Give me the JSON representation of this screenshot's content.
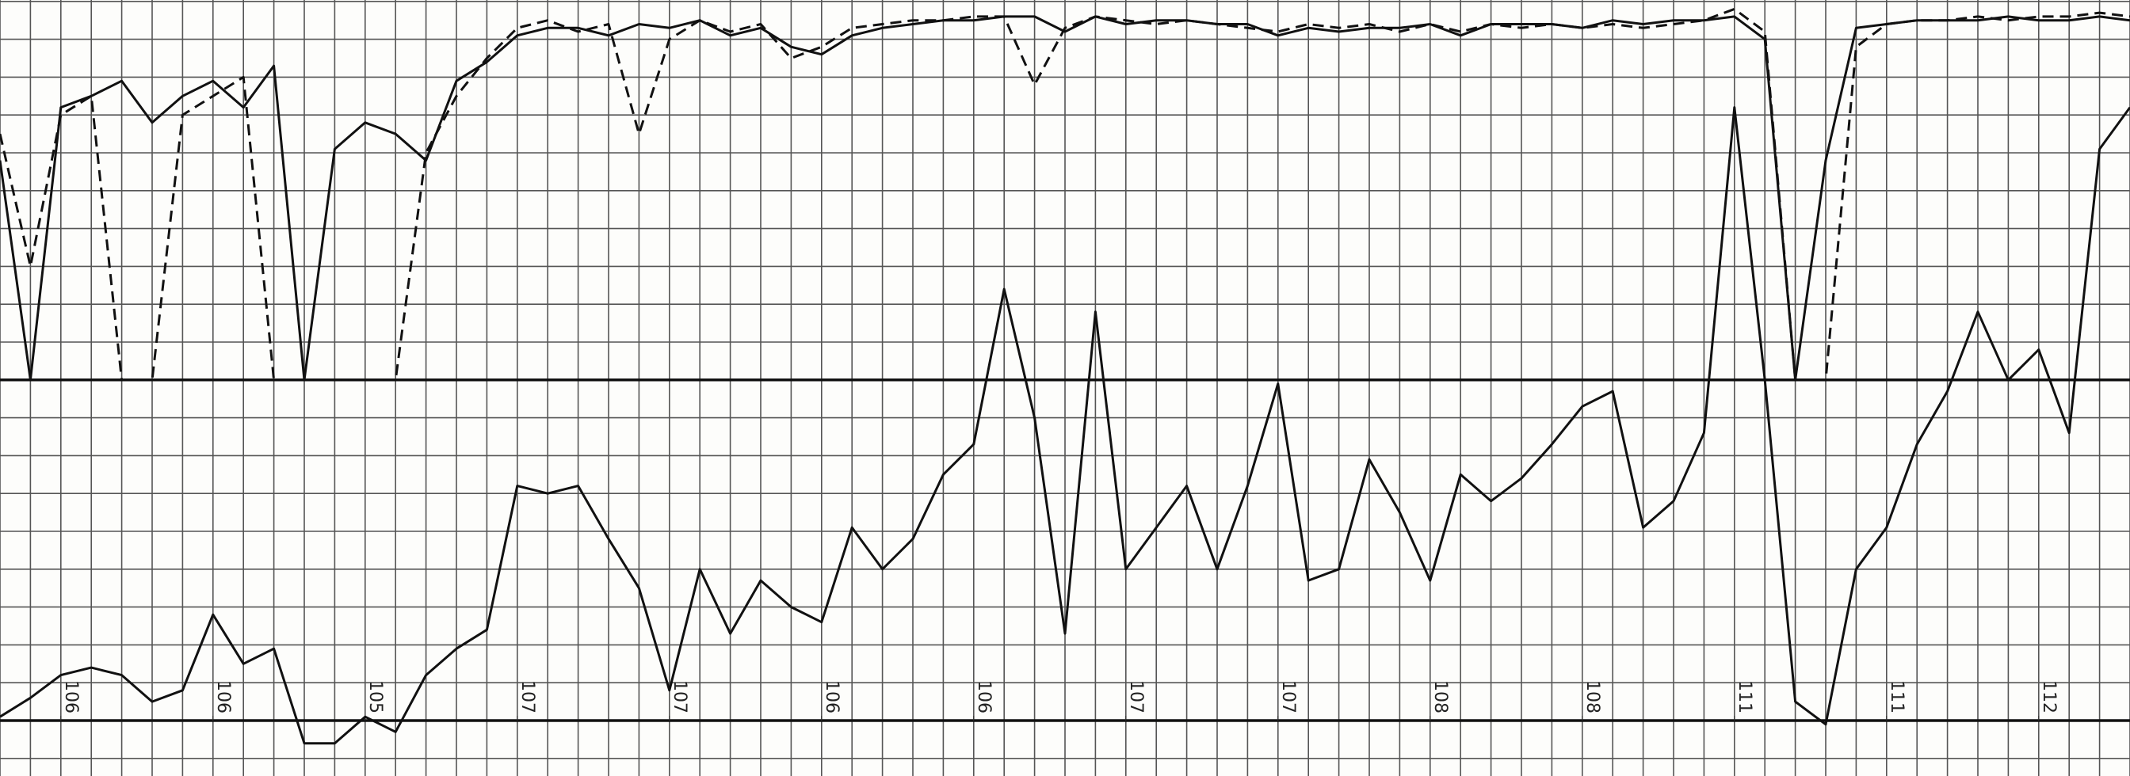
{
  "chart_data": {
    "type": "line",
    "x": [
      0,
      1,
      2,
      3,
      4,
      5,
      6,
      7,
      8,
      9,
      10,
      11,
      12,
      13,
      14,
      15,
      16,
      17,
      18,
      19,
      20,
      21,
      22,
      23,
      24,
      25,
      26,
      27,
      28,
      29,
      30,
      31,
      32,
      33,
      34,
      35,
      36,
      37,
      38,
      39,
      40,
      41,
      42,
      43,
      44,
      45,
      46,
      47,
      48,
      49,
      50,
      51,
      52,
      53,
      54,
      55,
      56,
      57,
      58,
      59,
      60,
      61,
      62,
      63,
      64,
      65,
      66,
      67,
      68,
      69,
      70
    ],
    "xlim": [
      0,
      70
    ],
    "ylim": [
      -1,
      19
    ],
    "xticks": [
      {
        "value": 2,
        "label": "106"
      },
      {
        "value": 7,
        "label": "106"
      },
      {
        "value": 12,
        "label": "105"
      },
      {
        "value": 17,
        "label": "107"
      },
      {
        "value": 22,
        "label": "107"
      },
      {
        "value": 27,
        "label": "106"
      },
      {
        "value": 32,
        "label": "106"
      },
      {
        "value": 37,
        "label": "107"
      },
      {
        "value": 42,
        "label": "107"
      },
      {
        "value": 47,
        "label": "108"
      },
      {
        "value": 52,
        "label": "108"
      },
      {
        "value": 57,
        "label": "111"
      },
      {
        "value": 62,
        "label": "111"
      },
      {
        "value": 67,
        "label": "112"
      }
    ],
    "grid": true,
    "reference_lines": [
      0,
      9
    ],
    "series": [
      {
        "color": "#111111",
        "dashed": false,
        "values": [
          14.8,
          9.0,
          16.2,
          16.5,
          16.9,
          15.8,
          16.5,
          16.9,
          16.2,
          17.3,
          9.0,
          15.1,
          15.8,
          15.5,
          14.8,
          16.9,
          17.4,
          18.1,
          18.3,
          18.3,
          18.1,
          18.4,
          18.3,
          18.5,
          18.1,
          18.3,
          17.8,
          17.6,
          18.1,
          18.3,
          18.4,
          18.5,
          18.5,
          18.6,
          18.6,
          18.2,
          18.6,
          18.4,
          18.5,
          18.5,
          18.4,
          18.4,
          18.1,
          18.3,
          18.2,
          18.3,
          18.3,
          18.4,
          18.1,
          18.4,
          18.4,
          18.4,
          18.3,
          18.5,
          18.4,
          18.5,
          18.5,
          18.6,
          18.0,
          9.0,
          14.8,
          18.3,
          18.4,
          18.5,
          18.5,
          18.5,
          18.6,
          18.5,
          18.5,
          18.6,
          18.5
        ]
      },
      {
        "color": "#111111",
        "dashed": true,
        "values": [
          15.5,
          12.0,
          16.0,
          16.5,
          9.0,
          9.0,
          16.0,
          16.5,
          17.0,
          9.0,
          9.0,
          9.0,
          9.0,
          9.0,
          15.0,
          16.5,
          17.5,
          18.3,
          18.5,
          18.2,
          18.4,
          15.5,
          18.0,
          18.5,
          18.2,
          18.4,
          17.5,
          17.8,
          18.3,
          18.4,
          18.5,
          18.5,
          18.6,
          18.6,
          16.8,
          18.3,
          18.6,
          18.5,
          18.4,
          18.5,
          18.4,
          18.3,
          18.2,
          18.4,
          18.3,
          18.4,
          18.2,
          18.4,
          18.2,
          18.4,
          18.3,
          18.4,
          18.3,
          18.4,
          18.3,
          18.4,
          18.5,
          18.8,
          18.2,
          9.0,
          9.0,
          17.8,
          18.4,
          18.5,
          18.5,
          18.6,
          18.5,
          18.6,
          18.6,
          18.7,
          18.6
        ]
      },
      {
        "color": "#111111",
        "dashed": false,
        "values": [
          0.1,
          0.6,
          1.2,
          1.4,
          1.2,
          0.5,
          0.8,
          2.8,
          1.5,
          1.9,
          -0.6,
          -0.6,
          0.1,
          -0.3,
          1.2,
          1.9,
          2.4,
          6.2,
          6.0,
          6.2,
          4.8,
          3.5,
          0.8,
          4.0,
          2.3,
          3.7,
          3.0,
          2.6,
          5.1,
          4.0,
          4.8,
          6.5,
          7.3,
          11.4,
          8.0,
          2.3,
          10.8,
          4.0,
          5.1,
          6.2,
          4.0,
          6.2,
          8.9,
          3.7,
          4.0,
          6.9,
          5.5,
          3.7,
          6.5,
          5.8,
          6.4,
          7.3,
          8.3,
          8.7,
          5.1,
          5.8,
          7.6,
          16.2,
          9.0,
          0.5,
          -0.1,
          4.0,
          5.1,
          7.3,
          8.7,
          10.8,
          9.0,
          9.8,
          7.6,
          15.1,
          16.2
        ]
      }
    ]
  }
}
